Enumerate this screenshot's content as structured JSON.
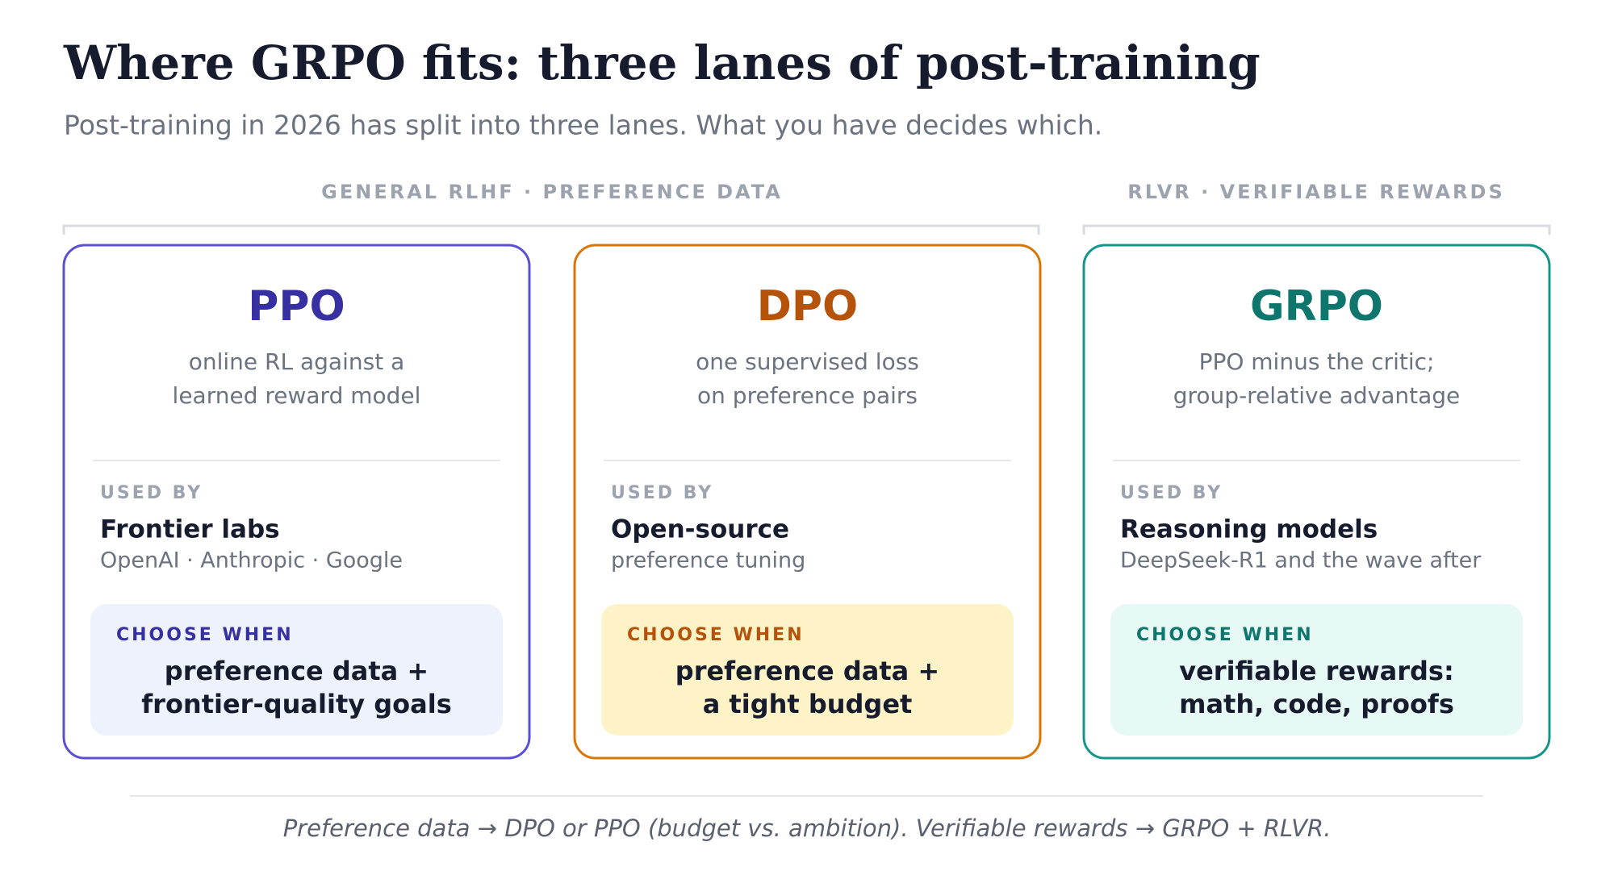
{
  "header": {
    "title": "Where GRPO fits: three lanes of post-training",
    "subtitle": "Post-training in 2026 has split into three lanes. What you have decides which."
  },
  "groups": [
    {
      "label": "GENERAL RLHF · PREFERENCE DATA"
    },
    {
      "label": "RLVR · VERIFIABLE REWARDS"
    }
  ],
  "cards": [
    {
      "title": "PPO",
      "description": [
        "online RL against a",
        "learned reward model"
      ],
      "used_by_label": "USED BY",
      "used_by": "Frontier labs",
      "used_by_detail": "OpenAI · Anthropic · Google",
      "choose_label": "CHOOSE WHEN",
      "choose": [
        "preference data +",
        "frontier-quality goals"
      ]
    },
    {
      "title": "DPO",
      "description": [
        "one supervised loss",
        "on preference pairs"
      ],
      "used_by_label": "USED BY",
      "used_by": "Open-source",
      "used_by_detail": "preference tuning",
      "choose_label": "CHOOSE WHEN",
      "choose": [
        "preference data +",
        "a tight budget"
      ]
    },
    {
      "title": "GRPO",
      "description": [
        "PPO minus the critic;",
        "group-relative advantage"
      ],
      "used_by_label": "USED BY",
      "used_by": "Reasoning models",
      "used_by_detail": "DeepSeek-R1 and the wave after",
      "choose_label": "CHOOSE WHEN",
      "choose": [
        "verifiable rewards:",
        "math, code, proofs"
      ]
    }
  ],
  "footer": "Preference data → DPO or PPO (budget vs. ambition).  Verifiable rewards → GRPO + RLVR."
}
